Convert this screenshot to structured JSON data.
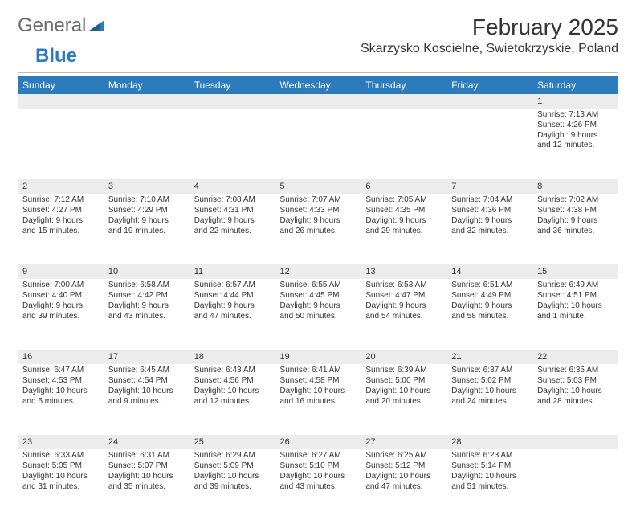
{
  "logo": {
    "text1": "General",
    "text2": "Blue",
    "tri_color": "#2b7bbd"
  },
  "title": "February 2025",
  "location": "Skarzysko Koscielne, Swietokrzyskie, Poland",
  "header_bg": "#2b7bbd",
  "daynum_bg": "#ececec",
  "weekdays": [
    "Sunday",
    "Monday",
    "Tuesday",
    "Wednesday",
    "Thursday",
    "Friday",
    "Saturday"
  ],
  "weeks": [
    [
      null,
      null,
      null,
      null,
      null,
      null,
      {
        "n": "1",
        "sr": "Sunrise: 7:13 AM",
        "ss": "Sunset: 4:26 PM",
        "d1": "Daylight: 9 hours",
        "d2": "and 12 minutes."
      }
    ],
    [
      {
        "n": "2",
        "sr": "Sunrise: 7:12 AM",
        "ss": "Sunset: 4:27 PM",
        "d1": "Daylight: 9 hours",
        "d2": "and 15 minutes."
      },
      {
        "n": "3",
        "sr": "Sunrise: 7:10 AM",
        "ss": "Sunset: 4:29 PM",
        "d1": "Daylight: 9 hours",
        "d2": "and 19 minutes."
      },
      {
        "n": "4",
        "sr": "Sunrise: 7:08 AM",
        "ss": "Sunset: 4:31 PM",
        "d1": "Daylight: 9 hours",
        "d2": "and 22 minutes."
      },
      {
        "n": "5",
        "sr": "Sunrise: 7:07 AM",
        "ss": "Sunset: 4:33 PM",
        "d1": "Daylight: 9 hours",
        "d2": "and 26 minutes."
      },
      {
        "n": "6",
        "sr": "Sunrise: 7:05 AM",
        "ss": "Sunset: 4:35 PM",
        "d1": "Daylight: 9 hours",
        "d2": "and 29 minutes."
      },
      {
        "n": "7",
        "sr": "Sunrise: 7:04 AM",
        "ss": "Sunset: 4:36 PM",
        "d1": "Daylight: 9 hours",
        "d2": "and 32 minutes."
      },
      {
        "n": "8",
        "sr": "Sunrise: 7:02 AM",
        "ss": "Sunset: 4:38 PM",
        "d1": "Daylight: 9 hours",
        "d2": "and 36 minutes."
      }
    ],
    [
      {
        "n": "9",
        "sr": "Sunrise: 7:00 AM",
        "ss": "Sunset: 4:40 PM",
        "d1": "Daylight: 9 hours",
        "d2": "and 39 minutes."
      },
      {
        "n": "10",
        "sr": "Sunrise: 6:58 AM",
        "ss": "Sunset: 4:42 PM",
        "d1": "Daylight: 9 hours",
        "d2": "and 43 minutes."
      },
      {
        "n": "11",
        "sr": "Sunrise: 6:57 AM",
        "ss": "Sunset: 4:44 PM",
        "d1": "Daylight: 9 hours",
        "d2": "and 47 minutes."
      },
      {
        "n": "12",
        "sr": "Sunrise: 6:55 AM",
        "ss": "Sunset: 4:45 PM",
        "d1": "Daylight: 9 hours",
        "d2": "and 50 minutes."
      },
      {
        "n": "13",
        "sr": "Sunrise: 6:53 AM",
        "ss": "Sunset: 4:47 PM",
        "d1": "Daylight: 9 hours",
        "d2": "and 54 minutes."
      },
      {
        "n": "14",
        "sr": "Sunrise: 6:51 AM",
        "ss": "Sunset: 4:49 PM",
        "d1": "Daylight: 9 hours",
        "d2": "and 58 minutes."
      },
      {
        "n": "15",
        "sr": "Sunrise: 6:49 AM",
        "ss": "Sunset: 4:51 PM",
        "d1": "Daylight: 10 hours",
        "d2": "and 1 minute."
      }
    ],
    [
      {
        "n": "16",
        "sr": "Sunrise: 6:47 AM",
        "ss": "Sunset: 4:53 PM",
        "d1": "Daylight: 10 hours",
        "d2": "and 5 minutes."
      },
      {
        "n": "17",
        "sr": "Sunrise: 6:45 AM",
        "ss": "Sunset: 4:54 PM",
        "d1": "Daylight: 10 hours",
        "d2": "and 9 minutes."
      },
      {
        "n": "18",
        "sr": "Sunrise: 6:43 AM",
        "ss": "Sunset: 4:56 PM",
        "d1": "Daylight: 10 hours",
        "d2": "and 12 minutes."
      },
      {
        "n": "19",
        "sr": "Sunrise: 6:41 AM",
        "ss": "Sunset: 4:58 PM",
        "d1": "Daylight: 10 hours",
        "d2": "and 16 minutes."
      },
      {
        "n": "20",
        "sr": "Sunrise: 6:39 AM",
        "ss": "Sunset: 5:00 PM",
        "d1": "Daylight: 10 hours",
        "d2": "and 20 minutes."
      },
      {
        "n": "21",
        "sr": "Sunrise: 6:37 AM",
        "ss": "Sunset: 5:02 PM",
        "d1": "Daylight: 10 hours",
        "d2": "and 24 minutes."
      },
      {
        "n": "22",
        "sr": "Sunrise: 6:35 AM",
        "ss": "Sunset: 5:03 PM",
        "d1": "Daylight: 10 hours",
        "d2": "and 28 minutes."
      }
    ],
    [
      {
        "n": "23",
        "sr": "Sunrise: 6:33 AM",
        "ss": "Sunset: 5:05 PM",
        "d1": "Daylight: 10 hours",
        "d2": "and 31 minutes."
      },
      {
        "n": "24",
        "sr": "Sunrise: 6:31 AM",
        "ss": "Sunset: 5:07 PM",
        "d1": "Daylight: 10 hours",
        "d2": "and 35 minutes."
      },
      {
        "n": "25",
        "sr": "Sunrise: 6:29 AM",
        "ss": "Sunset: 5:09 PM",
        "d1": "Daylight: 10 hours",
        "d2": "and 39 minutes."
      },
      {
        "n": "26",
        "sr": "Sunrise: 6:27 AM",
        "ss": "Sunset: 5:10 PM",
        "d1": "Daylight: 10 hours",
        "d2": "and 43 minutes."
      },
      {
        "n": "27",
        "sr": "Sunrise: 6:25 AM",
        "ss": "Sunset: 5:12 PM",
        "d1": "Daylight: 10 hours",
        "d2": "and 47 minutes."
      },
      {
        "n": "28",
        "sr": "Sunrise: 6:23 AM",
        "ss": "Sunset: 5:14 PM",
        "d1": "Daylight: 10 hours",
        "d2": "and 51 minutes."
      },
      null
    ]
  ]
}
